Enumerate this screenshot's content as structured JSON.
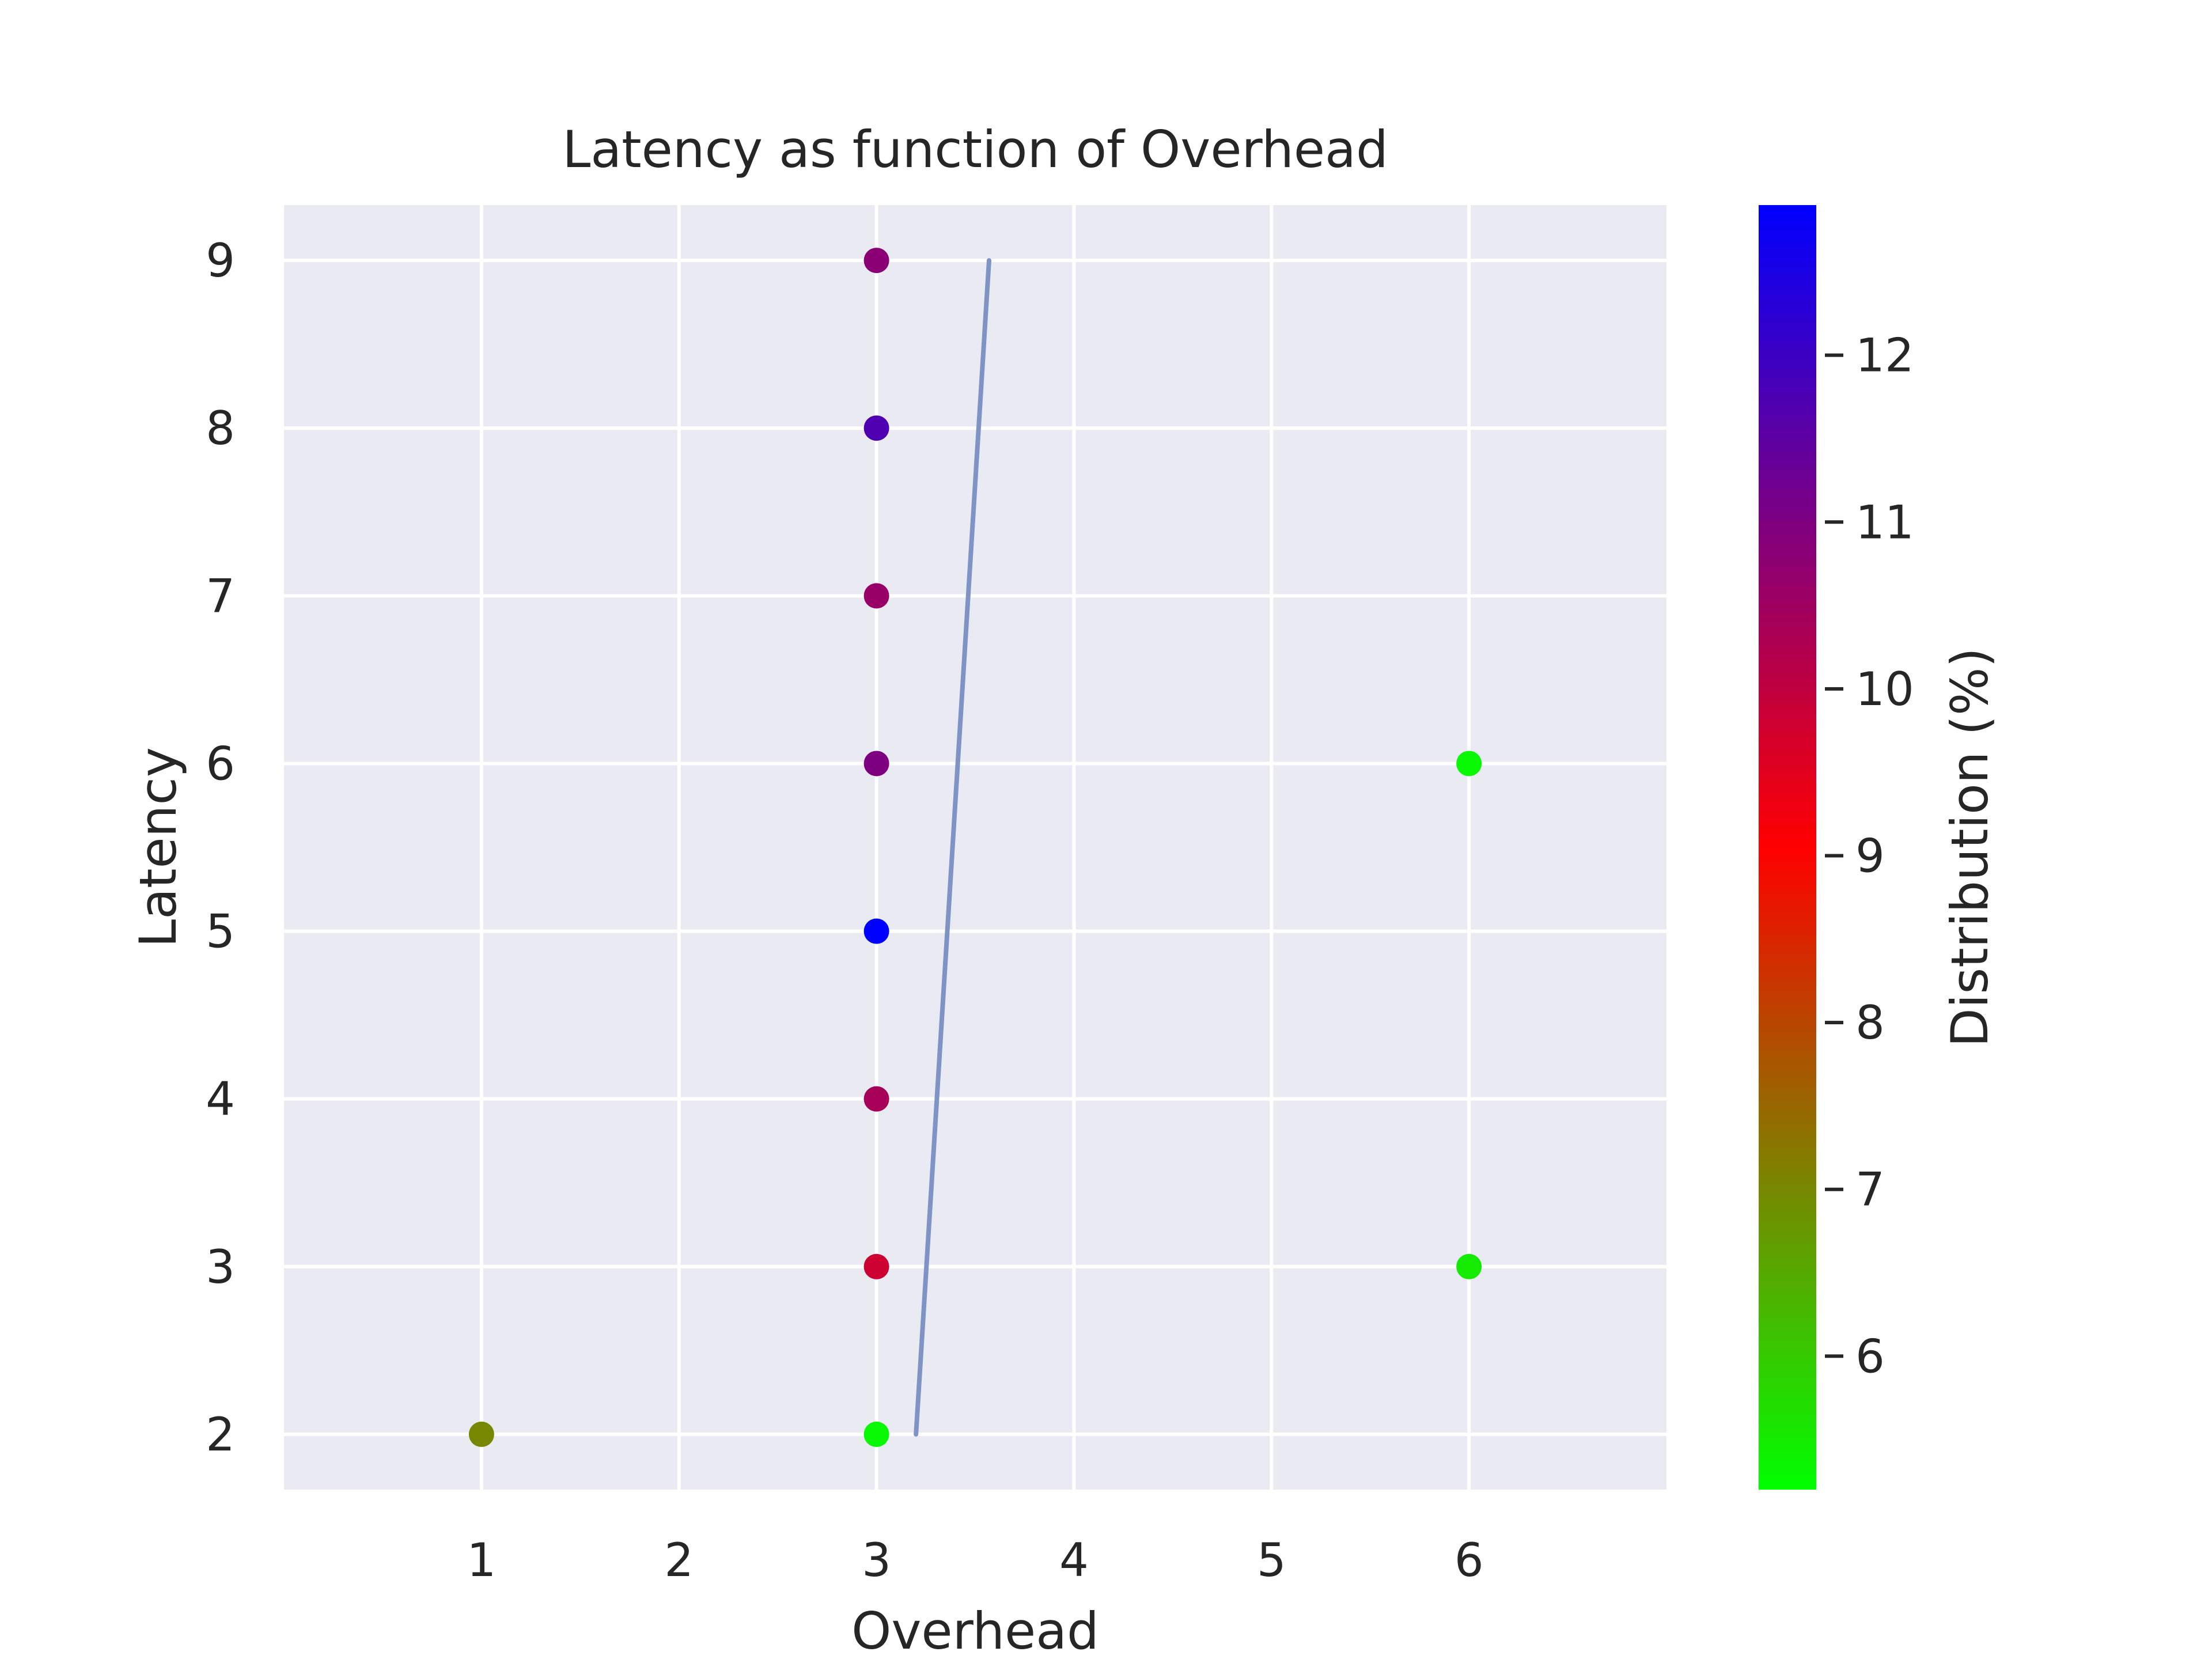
{
  "chart_data": {
    "type": "scatter",
    "title": "Latency as function of Overhead",
    "xlabel": "Overhead",
    "ylabel": "Latency",
    "xlim": [
      0.0,
      7.0
    ],
    "ylim": [
      1.67,
      9.33
    ],
    "xticks": [
      1,
      2,
      3,
      4,
      5,
      6
    ],
    "yticks": [
      2,
      3,
      4,
      5,
      6,
      7,
      8,
      9
    ],
    "grid": true,
    "background": "#eaeaf2",
    "points": [
      {
        "x": 1,
        "y": 2,
        "c": 7.0
      },
      {
        "x": 3,
        "y": 2,
        "c": 5.3
      },
      {
        "x": 3,
        "y": 3,
        "c": 9.8
      },
      {
        "x": 3,
        "y": 4,
        "c": 10.4
      },
      {
        "x": 3,
        "y": 5,
        "c": 12.9
      },
      {
        "x": 3,
        "y": 6,
        "c": 11.0
      },
      {
        "x": 3,
        "y": 7,
        "c": 10.6
      },
      {
        "x": 3,
        "y": 8,
        "c": 11.7
      },
      {
        "x": 3,
        "y": 9,
        "c": 10.8
      },
      {
        "x": 6,
        "y": 3,
        "c": 5.5
      },
      {
        "x": 6,
        "y": 6,
        "c": 5.3
      }
    ],
    "fit_line": {
      "x": [
        3.2,
        3.57
      ],
      "y": [
        2,
        9
      ],
      "color": "#7f94c4"
    },
    "colorbar": {
      "label": "Distribution (%)",
      "range": [
        5.2,
        12.9
      ],
      "ticks": [
        6,
        7,
        8,
        9,
        10,
        11,
        12
      ],
      "colors": [
        "#00ff00",
        "#ff0000",
        "#0000ff"
      ]
    }
  }
}
